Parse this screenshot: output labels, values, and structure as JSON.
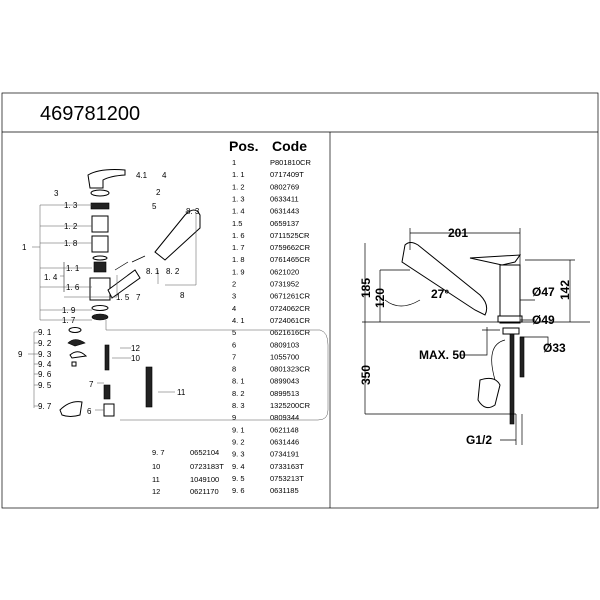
{
  "title": "469781200",
  "table": {
    "pos_header": "Pos.",
    "code_header": "Code",
    "rows": [
      {
        "pos": "1",
        "code": "P801810CR"
      },
      {
        "pos": "1. 1",
        "code": "0717409T"
      },
      {
        "pos": "1. 2",
        "code": "0802769"
      },
      {
        "pos": "1. 3",
        "code": "0633411"
      },
      {
        "pos": "1. 4",
        "code": "0631443"
      },
      {
        "pos": "1.5",
        "code": "0659137"
      },
      {
        "pos": "1. 6",
        "code": "0711525CR"
      },
      {
        "pos": "1. 7",
        "code": "0759662CR"
      },
      {
        "pos": "1. 8",
        "code": "0761465CR"
      },
      {
        "pos": "1. 9",
        "code": "0621020"
      },
      {
        "pos": "2",
        "code": "0731952"
      },
      {
        "pos": "3",
        "code": "0671261CR"
      },
      {
        "pos": "4",
        "code": "0724062CR"
      },
      {
        "pos": "4. 1",
        "code": "0724061CR"
      },
      {
        "pos": "5",
        "code": "0621616CR"
      },
      {
        "pos": "6",
        "code": "0809103"
      },
      {
        "pos": "7",
        "code": "1055700"
      },
      {
        "pos": "8",
        "code": "0801323CR"
      },
      {
        "pos": "8. 1",
        "code": "0899043"
      },
      {
        "pos": "8. 2",
        "code": "0899513"
      },
      {
        "pos": "8. 3",
        "code": "1325200CR"
      },
      {
        "pos": "9",
        "code": "0809344"
      },
      {
        "pos": "9. 1",
        "code": "0621148"
      },
      {
        "pos": "9. 2",
        "code": "0631446"
      },
      {
        "pos": "9. 3",
        "code": "0734191"
      },
      {
        "pos": "9. 4",
        "code": "0733163T"
      },
      {
        "pos": "9. 5",
        "code": "0753213T"
      },
      {
        "pos": "9. 6",
        "code": "0631185"
      }
    ],
    "extra_rows": [
      {
        "pos": "9. 7",
        "code": "0652104"
      },
      {
        "pos": "10",
        "code": "0723183T"
      },
      {
        "pos": "11",
        "code": "1049100"
      },
      {
        "pos": "12",
        "code": "0621170"
      }
    ]
  },
  "exploded_labels": {
    "l4_1": "4.1",
    "l4": "4",
    "l3": "3",
    "l2": "2",
    "l5": "5",
    "l1_3": "1. 3",
    "l1_2": "1. 2",
    "l1_8": "1. 8",
    "l1": "1",
    "l1_1": "1. 1",
    "l1_4": "1. 4",
    "l1_6": "1. 6",
    "l1_5": "1. 5",
    "l7a": "7",
    "l8": "8",
    "l8_3": "8. 3",
    "l8_1": "8. 1",
    "l8_2": "8. 2",
    "l1_9": "1. 9",
    "l1_7": "1. 7",
    "l9_1": "9. 1",
    "l9_2": "9. 2",
    "l9_3": "9. 3",
    "l9": "9",
    "l9_4": "9. 4",
    "l9_6": "9. 6",
    "l9_5": "9. 5",
    "l9_7": "9. 7",
    "l12": "12",
    "l10": "10",
    "l7b": "7",
    "l6": "6",
    "l11": "11"
  },
  "dimensions": {
    "width": "201",
    "height_total": "185",
    "spout_height": "120",
    "angle": "27°",
    "body_diameter": "Ø47",
    "base_diameter": "Ø49",
    "body_height": "142",
    "max_thickness": "MAX. 50",
    "hole_diameter": "Ø33",
    "hose_length": "350",
    "thread": "G1/2"
  }
}
